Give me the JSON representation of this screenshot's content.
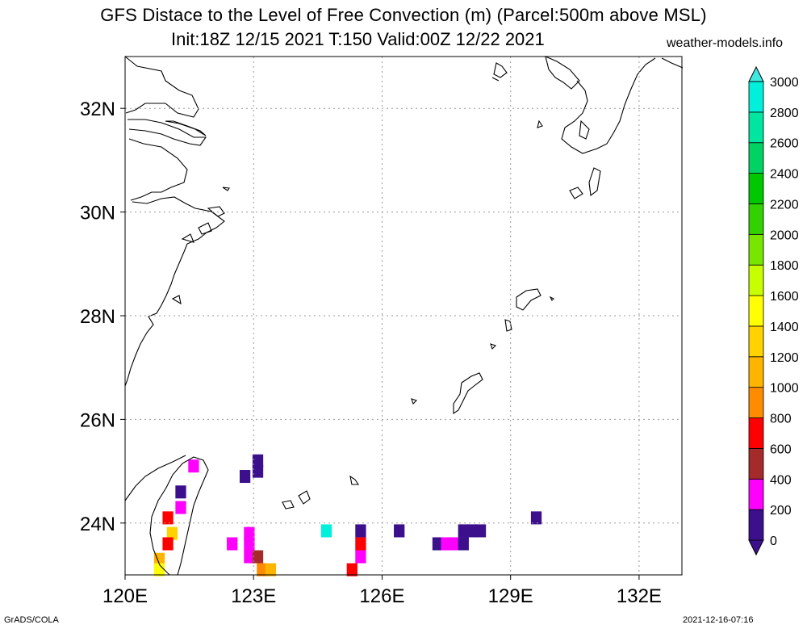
{
  "header": {
    "title": "GFS Distace to the Level of Free Convection (m) (Parcel:500m above MSL)",
    "subtitle": "Init:18Z 12/15 2021 T:150 Valid:00Z 12/22 2021",
    "site": "weather-models.info"
  },
  "footer": {
    "credit": "GrADS/COLA",
    "timestamp": "2021-12-16-07:16"
  },
  "map": {
    "lon_range": [
      120,
      133
    ],
    "lat_range": [
      23,
      33
    ],
    "lat_ticks": [
      {
        "value": 32,
        "label": "32N"
      },
      {
        "value": 30,
        "label": "30N"
      },
      {
        "value": 28,
        "label": "28N"
      },
      {
        "value": 26,
        "label": "26N"
      },
      {
        "value": 24,
        "label": "24N"
      }
    ],
    "lon_ticks": [
      {
        "value": 120,
        "label": "120E"
      },
      {
        "value": 123,
        "label": "123E"
      },
      {
        "value": 126,
        "label": "126E"
      },
      {
        "value": 129,
        "label": "129E"
      },
      {
        "value": 132,
        "label": "132E"
      }
    ]
  },
  "colorbar": {
    "levels": [
      "0",
      "200",
      "400",
      "600",
      "800",
      "1000",
      "1200",
      "1400",
      "1600",
      "1800",
      "2000",
      "2200",
      "2400",
      "2600",
      "2800",
      "3000"
    ],
    "colors": [
      "#3c0f8c",
      "#ff00ff",
      "#a52a2a",
      "#ff0000",
      "#ff8c00",
      "#ffb400",
      "#ffd200",
      "#ffff00",
      "#c8ff00",
      "#78e600",
      "#32d200",
      "#00c800",
      "#00d264",
      "#00e6a0",
      "#00f0dc",
      "#40e8e0"
    ]
  },
  "field_cells": [
    {
      "lon": 121.6,
      "lat": 25.1,
      "color": "#ff00ff"
    },
    {
      "lon": 122.8,
      "lat": 24.9,
      "color": "#3c0f8c"
    },
    {
      "lon": 123.1,
      "lat": 25.0,
      "color": "#3c0f8c"
    },
    {
      "lon": 123.1,
      "lat": 25.2,
      "color": "#3c0f8c"
    },
    {
      "lon": 121.3,
      "lat": 24.6,
      "color": "#3c0f8c"
    },
    {
      "lon": 121.3,
      "lat": 24.3,
      "color": "#ff00ff"
    },
    {
      "lon": 121.0,
      "lat": 24.1,
      "color": "#ff0000"
    },
    {
      "lon": 121.1,
      "lat": 23.8,
      "color": "#ffd200"
    },
    {
      "lon": 121.0,
      "lat": 23.6,
      "color": "#ff0000"
    },
    {
      "lon": 120.8,
      "lat": 23.3,
      "color": "#ffb400"
    },
    {
      "lon": 120.8,
      "lat": 23.1,
      "color": "#ffff00"
    },
    {
      "lon": 122.5,
      "lat": 23.6,
      "color": "#ff00ff"
    },
    {
      "lon": 122.9,
      "lat": 23.8,
      "color": "#ff00ff"
    },
    {
      "lon": 122.9,
      "lat": 23.6,
      "color": "#ff00ff"
    },
    {
      "lon": 122.9,
      "lat": 23.35,
      "color": "#ff00ff"
    },
    {
      "lon": 123.1,
      "lat": 23.35,
      "color": "#a52a2a"
    },
    {
      "lon": 123.2,
      "lat": 23.1,
      "color": "#ff8c00"
    },
    {
      "lon": 123.4,
      "lat": 23.1,
      "color": "#ffb400"
    },
    {
      "lon": 124.7,
      "lat": 23.85,
      "color": "#00f0dc"
    },
    {
      "lon": 125.5,
      "lat": 23.85,
      "color": "#3c0f8c"
    },
    {
      "lon": 125.5,
      "lat": 23.6,
      "color": "#ff0000"
    },
    {
      "lon": 125.5,
      "lat": 23.35,
      "color": "#ff00ff"
    },
    {
      "lon": 125.3,
      "lat": 23.1,
      "color": "#ff0000"
    },
    {
      "lon": 126.4,
      "lat": 23.85,
      "color": "#3c0f8c"
    },
    {
      "lon": 127.3,
      "lat": 23.6,
      "color": "#3c0f8c"
    },
    {
      "lon": 127.5,
      "lat": 23.6,
      "color": "#ff00ff"
    },
    {
      "lon": 127.7,
      "lat": 23.6,
      "color": "#ff00ff"
    },
    {
      "lon": 127.9,
      "lat": 23.6,
      "color": "#3c0f8c"
    },
    {
      "lon": 127.9,
      "lat": 23.85,
      "color": "#3c0f8c"
    },
    {
      "lon": 128.1,
      "lat": 23.85,
      "color": "#3c0f8c"
    },
    {
      "lon": 128.3,
      "lat": 23.85,
      "color": "#3c0f8c"
    },
    {
      "lon": 129.6,
      "lat": 24.1,
      "color": "#3c0f8c"
    }
  ]
}
